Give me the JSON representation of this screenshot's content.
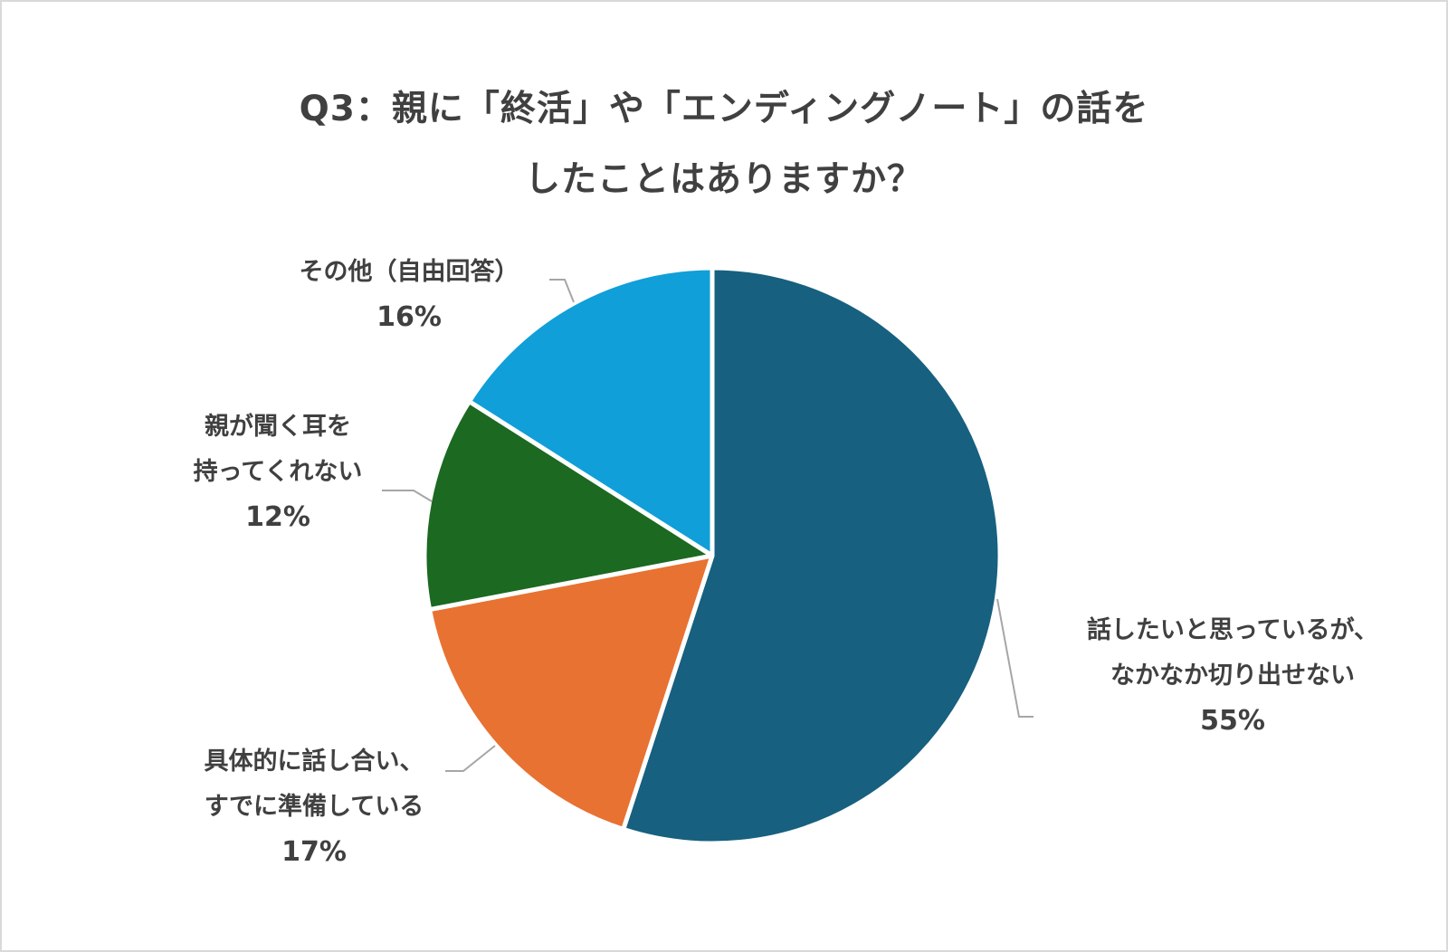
{
  "chart_data": {
    "type": "pie",
    "title_lines": [
      "Q3：親に「終活」や「エンディングノート」の話を",
      "したことはありますか？"
    ],
    "slices": [
      {
        "label_lines": [
          "話したいと思っているが、",
          "なかなか切り出せない"
        ],
        "value": 55,
        "value_label": "55%",
        "color": "#17607f"
      },
      {
        "label_lines": [
          "具体的に話し合い、",
          "すでに準備している"
        ],
        "value": 17,
        "value_label": "17%",
        "color": "#e87232"
      },
      {
        "label_lines": [
          "親が聞く耳を",
          "持ってくれない"
        ],
        "value": 12,
        "value_label": "12%",
        "color": "#1c6922"
      },
      {
        "label_lines": [
          "その他（自由回答）"
        ],
        "value": 16,
        "value_label": "16%",
        "color": "#109fd8"
      }
    ]
  }
}
